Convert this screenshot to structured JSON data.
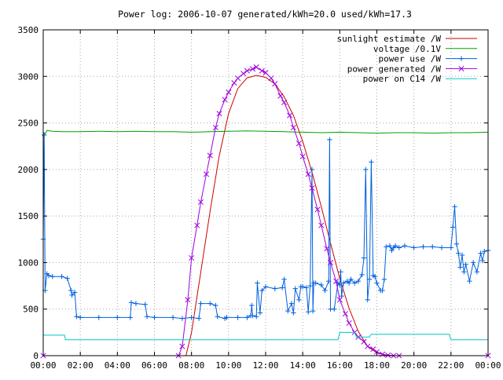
{
  "chart_data": {
    "type": "line",
    "title": "Power log: 2006-10-07 generated/kWh=20.0 used/kWh=17.3",
    "xlabel": "",
    "ylabel": "",
    "x_unit": "hours of day",
    "xlim": [
      0,
      24
    ],
    "ylim": [
      0,
      3500
    ],
    "xticks": [
      0,
      2,
      4,
      6,
      8,
      10,
      12,
      14,
      16,
      18,
      20,
      22,
      24
    ],
    "xtick_labels": [
      "00:00",
      "02:00",
      "04:00",
      "06:00",
      "08:00",
      "10:00",
      "12:00",
      "14:00",
      "16:00",
      "18:00",
      "20:00",
      "22:00",
      "00:00"
    ],
    "yticks": [
      0,
      500,
      1000,
      1500,
      2000,
      2500,
      3000,
      3500
    ],
    "ytick_labels": [
      "0",
      "500",
      "1000",
      "1500",
      "2000",
      "2500",
      "3000",
      "3500"
    ],
    "grid": true,
    "legend_position": "top-right",
    "series": [
      {
        "name": "sunlight estimate /W",
        "color": "#cc0000",
        "style": "line",
        "x": [
          0,
          7.7,
          8.0,
          8.5,
          9.0,
          9.5,
          10.0,
          10.5,
          11.0,
          11.5,
          12.0,
          12.5,
          13.0,
          13.5,
          14.0,
          14.5,
          15.0,
          15.5,
          16.0,
          16.5,
          17.0,
          17.5,
          18.0,
          18.5,
          18.9,
          24
        ],
        "y": [
          0,
          0,
          250,
          900,
          1550,
          2150,
          2600,
          2870,
          2985,
          3010,
          2990,
          2920,
          2780,
          2580,
          2300,
          1970,
          1600,
          1210,
          830,
          510,
          260,
          100,
          30,
          5,
          0,
          0
        ]
      },
      {
        "name": "voltage /0.1V",
        "color": "#00a000",
        "style": "line",
        "x": [
          0,
          0.1,
          0.2,
          0.5,
          1,
          2,
          3,
          4,
          5,
          6,
          7,
          8,
          9,
          10,
          11,
          12,
          13,
          14,
          15,
          16,
          17,
          18,
          19,
          20,
          21,
          22,
          23,
          24
        ],
        "y": [
          2400,
          2380,
          2420,
          2410,
          2405,
          2405,
          2410,
          2405,
          2410,
          2405,
          2405,
          2400,
          2405,
          2410,
          2415,
          2410,
          2405,
          2400,
          2395,
          2400,
          2395,
          2390,
          2395,
          2395,
          2390,
          2395,
          2395,
          2400
        ]
      },
      {
        "name": "power use /W",
        "color": "#0060dd",
        "style": "line+plus",
        "x": [
          0,
          0.05,
          0.1,
          0.2,
          0.3,
          0.5,
          1.0,
          1.3,
          1.5,
          1.55,
          1.7,
          1.8,
          2.0,
          3.0,
          4.0,
          4.7,
          4.75,
          5.0,
          5.5,
          5.6,
          6.0,
          7.0,
          7.5,
          8.0,
          8.4,
          8.5,
          9.0,
          9.3,
          9.4,
          9.8,
          9.9,
          10.5,
          11.0,
          11.2,
          11.25,
          11.3,
          11.5,
          11.55,
          11.7,
          11.8,
          12.0,
          12.5,
          12.9,
          13.0,
          13.2,
          13.4,
          13.5,
          13.6,
          13.8,
          13.9,
          14.0,
          14.2,
          14.3,
          14.4,
          14.5,
          14.55,
          14.6,
          14.7,
          15.0,
          15.2,
          15.4,
          15.45,
          15.5,
          15.7,
          15.9,
          16.0,
          16.05,
          16.1,
          16.2,
          16.4,
          16.5,
          16.6,
          16.8,
          17.0,
          17.2,
          17.3,
          17.4,
          17.5,
          17.6,
          17.7,
          17.8,
          17.9,
          18.0,
          18.2,
          18.3,
          18.4,
          18.5,
          18.7,
          18.8,
          18.9,
          19.0,
          19.2,
          19.5,
          20.0,
          20.5,
          21.0,
          21.5,
          22.0,
          22.1,
          22.2,
          22.3,
          22.4,
          22.5,
          22.6,
          22.7,
          22.8,
          23.0,
          23.2,
          23.4,
          23.6,
          23.7,
          23.8,
          24
        ],
        "y": [
          1250,
          2370,
          700,
          880,
          860,
          850,
          850,
          830,
          700,
          650,
          680,
          420,
          410,
          410,
          410,
          410,
          570,
          560,
          550,
          420,
          410,
          410,
          400,
          410,
          400,
          560,
          560,
          540,
          420,
          400,
          410,
          410,
          410,
          430,
          540,
          430,
          420,
          780,
          460,
          700,
          740,
          720,
          730,
          820,
          480,
          560,
          460,
          720,
          600,
          740,
          740,
          730,
          470,
          750,
          2000,
          480,
          780,
          780,
          760,
          700,
          800,
          2320,
          500,
          500,
          780,
          760,
          900,
          640,
          780,
          800,
          780,
          820,
          780,
          800,
          870,
          1050,
          2000,
          600,
          820,
          2080,
          860,
          850,
          780,
          700,
          700,
          820,
          1170,
          1180,
          1130,
          1160,
          1180,
          1160,
          1180,
          1160,
          1170,
          1170,
          1160,
          1160,
          1380,
          1600,
          1200,
          1100,
          950,
          1080,
          900,
          980,
          800,
          1000,
          900,
          1100,
          1020,
          1120,
          1130
        ]
      },
      {
        "name": "power generated /W",
        "color": "#a000e0",
        "style": "line+cross",
        "x": [
          0,
          7.3,
          7.5,
          7.8,
          8.0,
          8.3,
          8.5,
          8.8,
          9.0,
          9.3,
          9.5,
          9.8,
          10.0,
          10.3,
          10.5,
          10.8,
          11.0,
          11.3,
          11.5,
          11.8,
          12.0,
          12.3,
          12.5,
          12.8,
          13.0,
          13.3,
          13.5,
          13.8,
          14.0,
          14.3,
          14.5,
          14.8,
          15.0,
          15.3,
          15.5,
          15.8,
          16.0,
          16.3,
          16.5,
          16.8,
          17.0,
          17.3,
          17.5,
          17.8,
          18.0,
          18.3,
          18.6,
          18.9,
          19.2,
          24
        ],
        "y": [
          0,
          0,
          100,
          600,
          1050,
          1400,
          1650,
          1950,
          2150,
          2450,
          2600,
          2750,
          2830,
          2930,
          2980,
          3030,
          3060,
          3080,
          3100,
          3060,
          3040,
          2980,
          2920,
          2790,
          2720,
          2580,
          2450,
          2280,
          2140,
          1950,
          1800,
          1570,
          1400,
          1150,
          1000,
          800,
          600,
          450,
          350,
          250,
          200,
          150,
          100,
          70,
          40,
          15,
          5,
          0,
          0,
          0
        ]
      },
      {
        "name": "power on C14 /W",
        "color": "#00c8c8",
        "style": "line",
        "x": [
          0,
          1.15,
          1.2,
          15.9,
          16.0,
          16.8,
          16.9,
          17.6,
          17.7,
          21.9,
          22.0,
          24
        ],
        "y": [
          220,
          220,
          170,
          170,
          250,
          250,
          200,
          200,
          230,
          230,
          170,
          170
        ]
      }
    ]
  }
}
